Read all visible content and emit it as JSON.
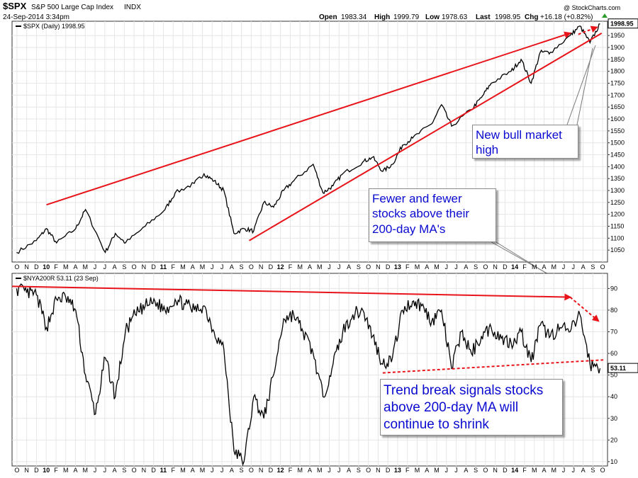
{
  "header": {
    "symbol": "$SPX",
    "name": "S&P 500 Large Cap Index",
    "exchange": "INDX",
    "datetime": "24-Sep-2014 3:34pm",
    "open_label": "Open",
    "open": "1983.34",
    "high_label": "High",
    "high": "1999.79",
    "low_label": "Low",
    "low": "1978.63",
    "last_label": "Last",
    "last": "1998.95",
    "chg_label": "Chg",
    "chg": "+16.18 (+0.82%)",
    "watermark": "@ StockCharts.com"
  },
  "colors": {
    "price_line": "#000000",
    "trend_line": "#e8141a",
    "annotation_text": "#0a0ad0",
    "grid": "#e6e6e6"
  },
  "annotations": {
    "bull_high": "New bull market high",
    "fewer_stocks": "Fewer and fewer stocks above their 200-day MA's",
    "trend_break": "Trend break signals stocks above 200-day MA will continue to shrink"
  },
  "chart_data": [
    {
      "type": "line",
      "legend": "$SPX (Daily) 1998.95",
      "last_value_label": "1998.95",
      "ylim": [
        1000,
        2010
      ],
      "y_ticks": [
        1050,
        1100,
        1150,
        1200,
        1250,
        1300,
        1350,
        1400,
        1450,
        1500,
        1550,
        1600,
        1650,
        1700,
        1750,
        1800,
        1850,
        1900,
        1950
      ],
      "x_ticks": [
        "O",
        "N",
        "D",
        "10",
        "F",
        "M",
        "A",
        "M",
        "J",
        "J",
        "A",
        "S",
        "O",
        "N",
        "D",
        "11",
        "F",
        "M",
        "A",
        "M",
        "J",
        "J",
        "A",
        "S",
        "O",
        "N",
        "D",
        "12",
        "F",
        "M",
        "A",
        "M",
        "J",
        "J",
        "A",
        "S",
        "O",
        "N",
        "D",
        "13",
        "F",
        "M",
        "A",
        "M",
        "J",
        "J",
        "A",
        "S",
        "O",
        "N",
        "D",
        "14",
        "F",
        "M",
        "A",
        "M",
        "J",
        "J",
        "A",
        "S",
        "O"
      ],
      "x": [
        "2009-10",
        "2009-12",
        "2010-01",
        "2010-02",
        "2010-04",
        "2010-05",
        "2010-07",
        "2010-08",
        "2010-09",
        "2010-11",
        "2011-01",
        "2011-02",
        "2011-04",
        "2011-05",
        "2011-06",
        "2011-07",
        "2011-08",
        "2011-09",
        "2011-10",
        "2011-11",
        "2011-12",
        "2012-01",
        "2012-02",
        "2012-04",
        "2012-05",
        "2012-06",
        "2012-07",
        "2012-09",
        "2012-10",
        "2012-11",
        "2012-12",
        "2013-01",
        "2013-02",
        "2013-04",
        "2013-05",
        "2013-06",
        "2013-08",
        "2013-09",
        "2013-10",
        "2013-12",
        "2014-01",
        "2014-02",
        "2014-03",
        "2014-04",
        "2014-06",
        "2014-07",
        "2014-08",
        "2014-09"
      ],
      "values": [
        1040,
        1090,
        1140,
        1080,
        1140,
        1220,
        1040,
        1120,
        1080,
        1150,
        1220,
        1290,
        1330,
        1370,
        1340,
        1300,
        1120,
        1140,
        1130,
        1250,
        1230,
        1300,
        1340,
        1410,
        1290,
        1320,
        1370,
        1420,
        1440,
        1380,
        1410,
        1490,
        1520,
        1580,
        1660,
        1570,
        1640,
        1690,
        1750,
        1800,
        1850,
        1750,
        1880,
        1880,
        1950,
        1990,
        1920,
        1999
      ],
      "lines": [
        {
          "x": [
            "2010-01-15",
            "2014-06-15"
          ],
          "y": [
            1240,
            1960
          ]
        },
        {
          "x": [
            "2011-10-01",
            "2014-09-20"
          ],
          "y": [
            1090,
            1960
          ]
        }
      ]
    },
    {
      "type": "line",
      "legend": "$NYA200R 53.11 (23 Sep)",
      "last_value_label": "53.11",
      "ylim": [
        8,
        97
      ],
      "y_ticks": [
        10,
        20,
        30,
        40,
        50,
        60,
        70,
        80,
        90
      ],
      "x_ticks": [
        "O",
        "N",
        "D",
        "10",
        "F",
        "M",
        "A",
        "M",
        "J",
        "J",
        "A",
        "S",
        "O",
        "N",
        "D",
        "11",
        "F",
        "M",
        "A",
        "M",
        "J",
        "J",
        "A",
        "S",
        "O",
        "N",
        "D",
        "12",
        "F",
        "M",
        "A",
        "M",
        "J",
        "J",
        "A",
        "S",
        "O",
        "N",
        "D",
        "13",
        "F",
        "M",
        "A",
        "M",
        "J",
        "J",
        "A",
        "S",
        "O",
        "N",
        "D",
        "14",
        "F",
        "M",
        "A",
        "M",
        "J",
        "J",
        "A",
        "S",
        "O"
      ],
      "x": [
        "2009-10",
        "2009-11",
        "2009-12",
        "2010-01",
        "2010-02",
        "2010-03",
        "2010-04",
        "2010-05",
        "2010-06",
        "2010-07",
        "2010-08",
        "2010-09",
        "2010-10",
        "2010-11",
        "2010-12",
        "2011-01",
        "2011-02",
        "2011-03",
        "2011-04",
        "2011-05",
        "2011-06",
        "2011-07",
        "2011-08",
        "2011-09",
        "2011-10",
        "2011-11",
        "2011-12",
        "2012-01",
        "2012-02",
        "2012-03",
        "2012-04",
        "2012-05",
        "2012-06",
        "2012-07",
        "2012-08",
        "2012-09",
        "2012-10",
        "2012-11",
        "2012-12",
        "2013-01",
        "2013-02",
        "2013-03",
        "2013-04",
        "2013-05",
        "2013-06",
        "2013-07",
        "2013-08",
        "2013-09",
        "2013-10",
        "2013-11",
        "2013-12",
        "2014-01",
        "2014-02",
        "2014-03",
        "2014-04",
        "2014-05",
        "2014-06",
        "2014-07",
        "2014-08",
        "2014-09"
      ],
      "values": [
        90,
        88,
        87,
        72,
        85,
        86,
        80,
        50,
        32,
        58,
        40,
        70,
        78,
        82,
        84,
        80,
        85,
        83,
        80,
        82,
        70,
        62,
        15,
        10,
        40,
        30,
        50,
        76,
        78,
        70,
        60,
        40,
        55,
        70,
        78,
        80,
        68,
        55,
        58,
        80,
        84,
        82,
        75,
        80,
        53,
        70,
        60,
        68,
        72,
        67,
        65,
        70,
        56,
        73,
        68,
        72,
        70,
        78,
        55,
        53.11
      ],
      "lines": [
        {
          "x": [
            "2009-10-01",
            "2014-06-15"
          ],
          "y": [
            91,
            86
          ]
        },
        {
          "x": [
            "2014-06-15",
            "2014-09-10"
          ],
          "y": [
            86,
            75
          ]
        },
        {
          "x": [
            "2012-11-15",
            "2014-09-25"
          ],
          "y": [
            51,
            57
          ]
        }
      ]
    }
  ]
}
